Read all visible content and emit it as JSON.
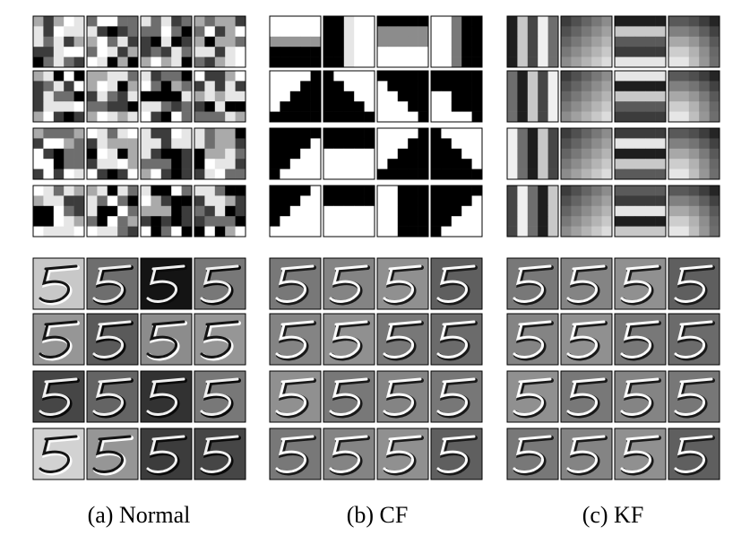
{
  "figure": {
    "panels": [
      {
        "id": "a",
        "caption": "(a) Normal",
        "filter_style": "random",
        "feature_map_style": "high-contrast"
      },
      {
        "id": "b",
        "caption": "(b) CF",
        "filter_style": "diagonal-and-stripe",
        "feature_map_style": "embossed"
      },
      {
        "id": "c",
        "caption": "(c) KF",
        "filter_style": "smooth-gradient",
        "feature_map_style": "embossed"
      }
    ],
    "filter_grid": {
      "rows": 4,
      "cols": 4,
      "cells_per_filter": 5
    },
    "feature_map_grid": {
      "rows": 4,
      "cols": 4
    },
    "depicted_digit": "5",
    "colors": {
      "filter_border": "#000000",
      "map_border": "#000000"
    }
  }
}
